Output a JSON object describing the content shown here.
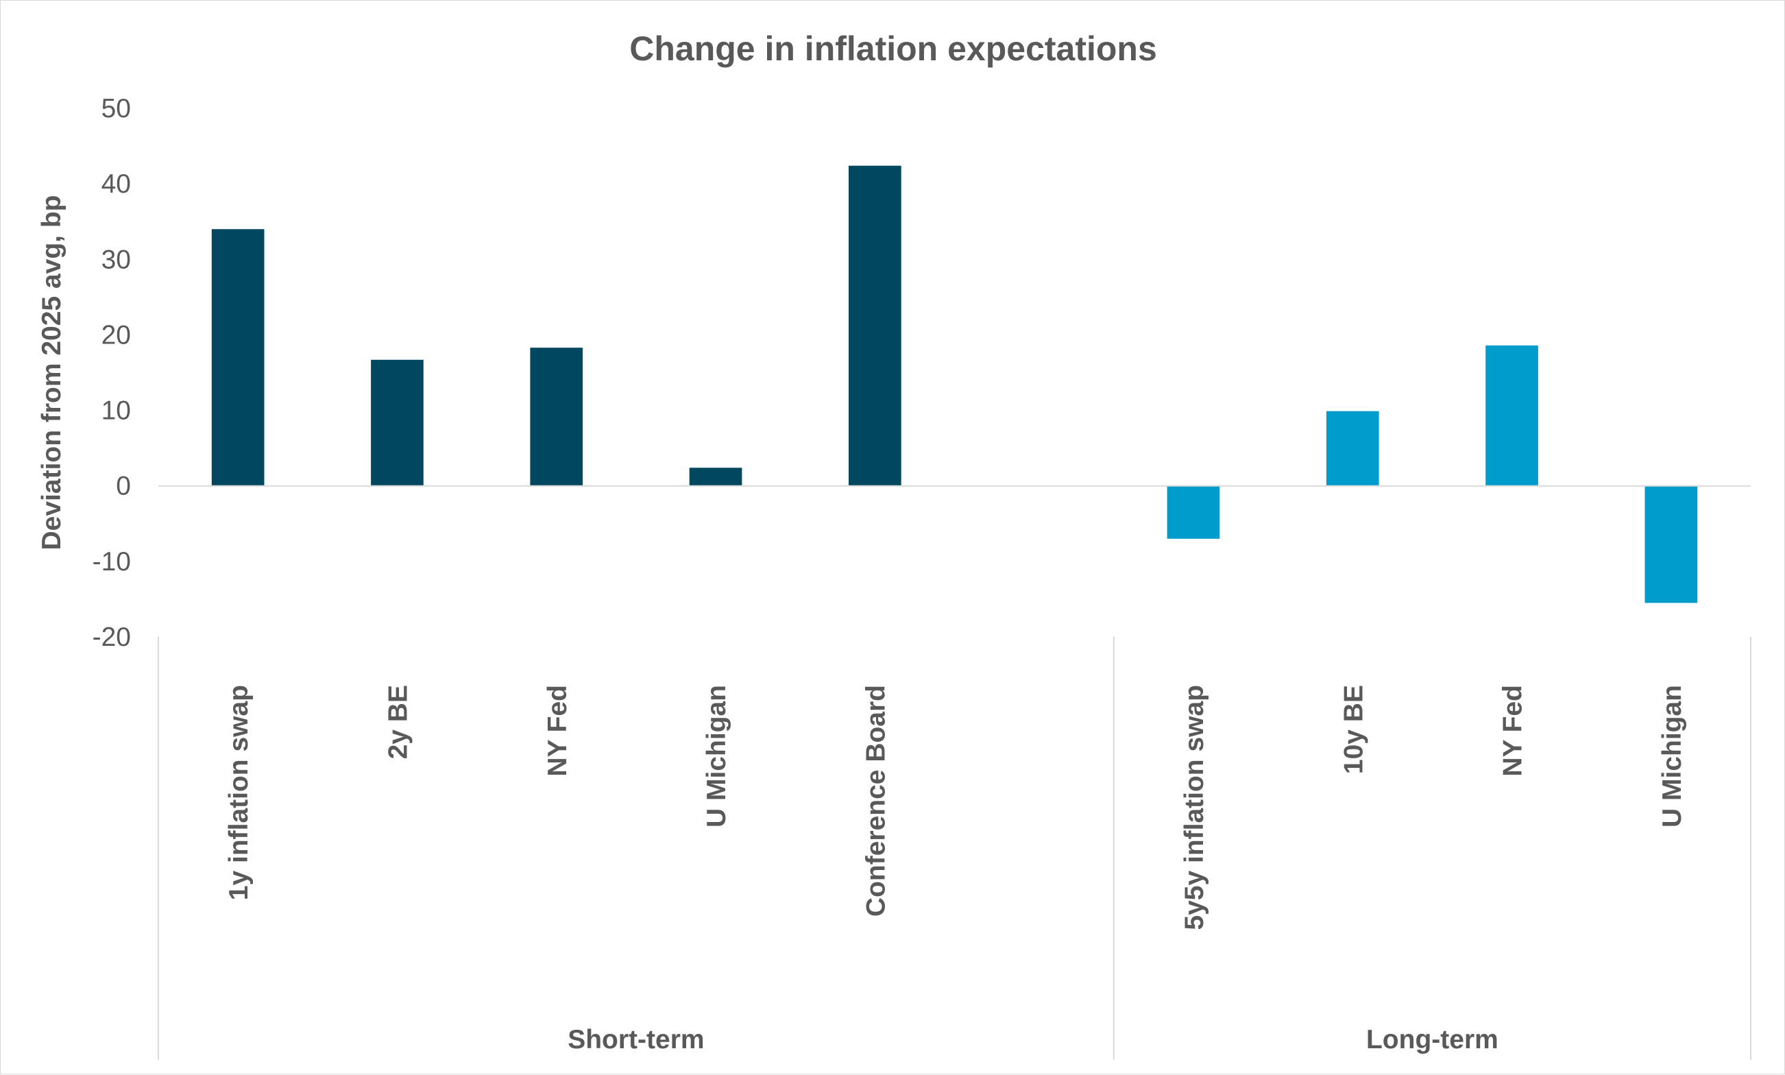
{
  "chart_data": {
    "type": "bar",
    "title": "Change in inflation expectations",
    "ylabel": "Deviation from 2025 avg, bp",
    "xlabel": "",
    "ylim": [
      -20,
      50
    ],
    "yticks": [
      50,
      40,
      30,
      20,
      10,
      0,
      -10,
      -20
    ],
    "grid": false,
    "legend": "none",
    "categories": [
      "1y inflation swap",
      "2y BE",
      "NY Fed",
      "U Michigan",
      "Conference Board",
      "",
      "5y5y inflation swap",
      "10y BE",
      "NY Fed",
      "U Michigan"
    ],
    "values": [
      34,
      16.7,
      18.3,
      2.4,
      42.4,
      null,
      -7,
      9.9,
      18.6,
      -15.5
    ],
    "groups": [
      {
        "label": "Short-term",
        "color": "#00475f"
      },
      {
        "label": "Long-term",
        "color": "#009ccc"
      }
    ],
    "bar_group": [
      0,
      0,
      0,
      0,
      0,
      null,
      1,
      1,
      1,
      1
    ]
  }
}
